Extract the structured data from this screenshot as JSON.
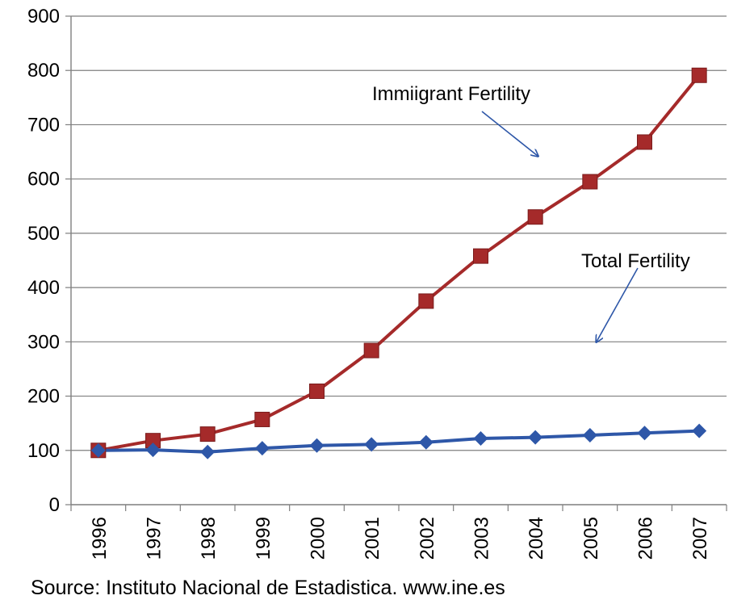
{
  "chart_data": {
    "type": "line",
    "categories": [
      "1996",
      "1997",
      "1998",
      "1999",
      "2000",
      "2001",
      "2002",
      "2003",
      "2004",
      "2005",
      "2006",
      "2007"
    ],
    "series": [
      {
        "name": "Immiigrant Fertility",
        "color": "#A52A2A",
        "marker": "square",
        "values": [
          100,
          118,
          130,
          157,
          209,
          284,
          375,
          458,
          530,
          595,
          668,
          791
        ]
      },
      {
        "name": "Total Fertility",
        "color": "#2E57A8",
        "marker": "diamond",
        "values": [
          100,
          101,
          97,
          104,
          109,
          111,
          115,
          122,
          124,
          128,
          132,
          136
        ]
      }
    ],
    "ylim": [
      0,
      900
    ],
    "yticks": [
      0,
      100,
      200,
      300,
      400,
      500,
      600,
      700,
      800,
      900
    ],
    "grid": true,
    "legend": "none",
    "annotations": [
      {
        "text": "Immiigrant Fertility",
        "arrow_color": "#2E57A8"
      },
      {
        "text": "Total Fertility",
        "arrow_color": "#2E57A8"
      }
    ]
  },
  "source": "Source: Instituto Nacional de Estadistica.  www.ine.es"
}
